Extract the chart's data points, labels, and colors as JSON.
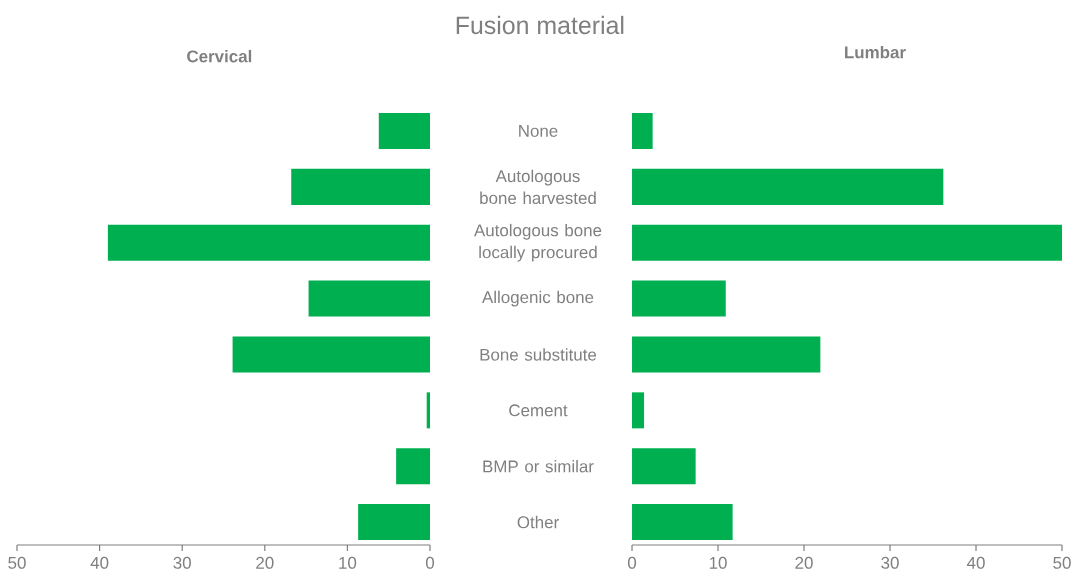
{
  "chart_data": [
    {
      "type": "bar",
      "orientation": "horizontal",
      "title": "Cervical",
      "annotations": [
        "Fusion material"
      ],
      "categories": [
        "None",
        "Autologous bone harvested",
        "Autologous bone locally procured",
        "Allogenic bone",
        "Bone substitute",
        "Cement",
        "BMP or similar",
        "Other"
      ],
      "values": [
        6.2,
        16.8,
        39.0,
        14.7,
        23.9,
        0.4,
        4.1,
        8.7
      ],
      "color": "#00b050",
      "xlim": [
        50,
        0
      ],
      "xticks": [
        50,
        40,
        30,
        20,
        10,
        0
      ]
    },
    {
      "type": "bar",
      "orientation": "horizontal",
      "title": "Lumbar",
      "tick_labels": "x",
      "categories": [
        null,
        null,
        null,
        null,
        null,
        null,
        null,
        null
      ],
      "values": [
        2.4,
        36.2,
        50,
        10.9,
        21.9,
        1.4,
        7.4,
        11.7
      ],
      "color": "#00b050",
      "xlim": [
        0,
        50
      ],
      "xticks": [
        0,
        10,
        20,
        30,
        40,
        50
      ]
    }
  ]
}
